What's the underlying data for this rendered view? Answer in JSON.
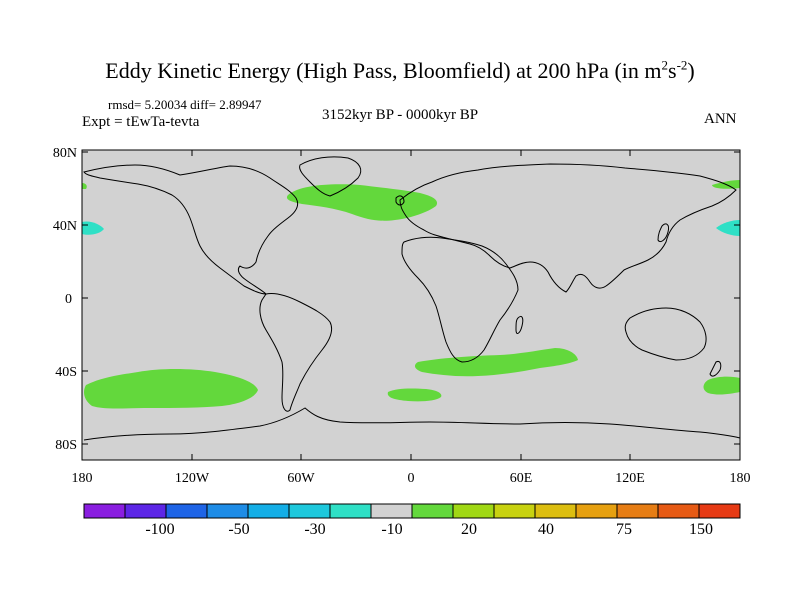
{
  "title": {
    "main": "Eddy Kinetic Energy (High Pass, Bloomfield) at 200 hPa (in m",
    "exp1": "2",
    "mid": "s",
    "exp2": "-2",
    "close": ")"
  },
  "stats": "rmsd= 5.20034 diff= 2.89947",
  "expt": "Expt = tEwTa-tevta",
  "period": "3152kyr BP - 0000kyr BP",
  "season": "ANN",
  "axes": {
    "lat_ticks": [
      "80N",
      "40N",
      "0",
      "40S",
      "80S"
    ],
    "lon_ticks": [
      "180",
      "120W",
      "60W",
      "0",
      "60E",
      "120E",
      "180"
    ]
  },
  "colors": {
    "ocean_land_fill": "#d2d2d2",
    "positive": "#63d83c",
    "negative": "#2fe0c6",
    "coast": "#000000"
  },
  "anomalies": [
    {
      "name": "north-atlantic-positive",
      "sign": "positive"
    },
    {
      "name": "south-pacific-positive",
      "sign": "positive"
    },
    {
      "name": "south-indian-positive",
      "sign": "positive"
    },
    {
      "name": "south-atlantic-positive",
      "sign": "positive"
    },
    {
      "name": "tasman-positive",
      "sign": "positive"
    },
    {
      "name": "north-pacific-east-positive",
      "sign": "positive"
    },
    {
      "name": "north-pacific-west-negative",
      "sign": "negative"
    },
    {
      "name": "north-pacific-east-negative",
      "sign": "negative"
    }
  ],
  "colorbar": {
    "colors": [
      "#8a1ee0",
      "#5d26e6",
      "#1e64e6",
      "#1e8ce6",
      "#14aee6",
      "#1ec8dc",
      "#2fe0c6",
      "#d2d2d2",
      "#63d83c",
      "#a0d814",
      "#c8d210",
      "#dcbe10",
      "#e6a010",
      "#e67d14",
      "#e65a14",
      "#e63a14"
    ],
    "labels": [
      "-100",
      "-50",
      "-30",
      "-10",
      "20",
      "40",
      "75",
      "150"
    ]
  }
}
